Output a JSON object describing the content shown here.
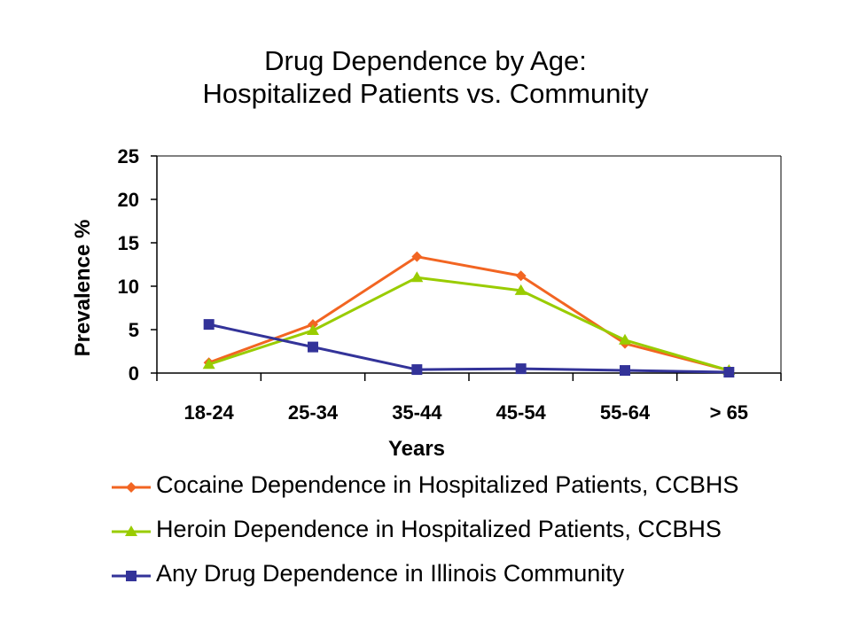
{
  "title_line1": "Drug Dependence by Age:",
  "title_line2": "Hospitalized Patients vs. Community",
  "chart_data": {
    "type": "line",
    "title": "Drug Dependence by Age: Hospitalized Patients vs. Community",
    "xlabel": "Years",
    "ylabel": "Prevalence %",
    "categories": [
      "18-24",
      "25-34",
      "35-44",
      "45-54",
      "55-64",
      "> 65"
    ],
    "ylim": [
      0,
      25
    ],
    "yticks": [
      0,
      5,
      10,
      15,
      20,
      25
    ],
    "grid": false,
    "legend_position": "bottom",
    "series": [
      {
        "name": "Cocaine Dependence in Hospitalized Patients, CCBHS",
        "values": [
          1.2,
          5.6,
          13.4,
          11.2,
          3.4,
          0.3
        ],
        "color": "#f26522",
        "marker": "diamond"
      },
      {
        "name": "Heroin Dependence in Hospitalized Patients, CCBHS",
        "values": [
          1.0,
          4.9,
          11.0,
          9.5,
          3.8,
          0.3
        ],
        "color": "#99cc00",
        "marker": "triangle"
      },
      {
        "name": "Any Drug Dependence in Illinois Community",
        "values": [
          5.6,
          3.0,
          0.4,
          0.5,
          0.3,
          0.1
        ],
        "color": "#333399",
        "marker": "square"
      }
    ]
  }
}
